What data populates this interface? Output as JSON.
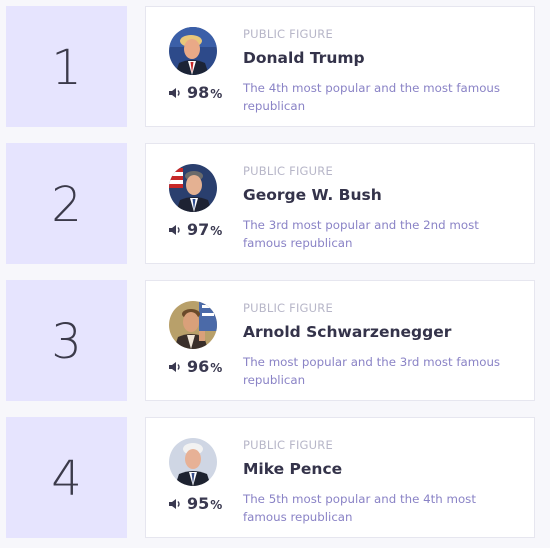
{
  "items": [
    {
      "rank": "1",
      "category": "PUBLIC FIGURE",
      "name": "Donald Trump",
      "popularity": "98",
      "percent_sign": "%",
      "description": "The 4th most popular and the most famous republican",
      "avatar_icon": "portrait-trump"
    },
    {
      "rank": "2",
      "category": "PUBLIC FIGURE",
      "name": "George W. Bush",
      "popularity": "97",
      "percent_sign": "%",
      "description": "The 3rd most popular and the 2nd most famous republican",
      "avatar_icon": "portrait-bush"
    },
    {
      "rank": "3",
      "category": "PUBLIC FIGURE",
      "name": "Arnold Schwarzenegger",
      "popularity": "96",
      "percent_sign": "%",
      "description": "The most popular and the 3rd most famous republican",
      "avatar_icon": "portrait-schwarzenegger"
    },
    {
      "rank": "4",
      "category": "PUBLIC FIGURE",
      "name": "Mike Pence",
      "popularity": "95",
      "percent_sign": "%",
      "description": "The 5th most popular and the 4th most famous republican",
      "avatar_icon": "portrait-pence"
    }
  ],
  "colors": {
    "rank_background": "#e6e4fe",
    "card_background": "#ffffff",
    "category_text": "#b7b6c8",
    "name_text": "#34334a",
    "description_text": "#8a83c6"
  }
}
